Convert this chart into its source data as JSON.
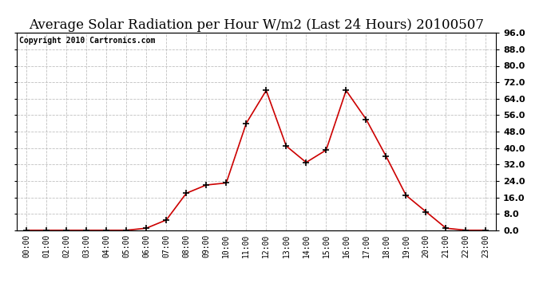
{
  "title": "Average Solar Radiation per Hour W/m2 (Last 24 Hours) 20100507",
  "copyright": "Copyright 2010 Cartronics.com",
  "hours": [
    "00:00",
    "01:00",
    "02:00",
    "03:00",
    "04:00",
    "05:00",
    "06:00",
    "07:00",
    "08:00",
    "09:00",
    "10:00",
    "11:00",
    "12:00",
    "13:00",
    "14:00",
    "15:00",
    "16:00",
    "17:00",
    "18:00",
    "19:00",
    "20:00",
    "21:00",
    "22:00",
    "23:00"
  ],
  "values": [
    0,
    0,
    0,
    0,
    0,
    0,
    1,
    5,
    18,
    22,
    23,
    52,
    68,
    41,
    33,
    39,
    68,
    54,
    36,
    17,
    9,
    1,
    0,
    0
  ],
  "line_color": "#cc0000",
  "marker_color": "#000000",
  "background_color": "#ffffff",
  "grid_color": "#c0c0c0",
  "ylim": [
    0,
    96
  ],
  "yticks": [
    0,
    8,
    16,
    24,
    32,
    40,
    48,
    56,
    64,
    72,
    80,
    88,
    96
  ],
  "title_fontsize": 12,
  "copyright_fontsize": 7
}
